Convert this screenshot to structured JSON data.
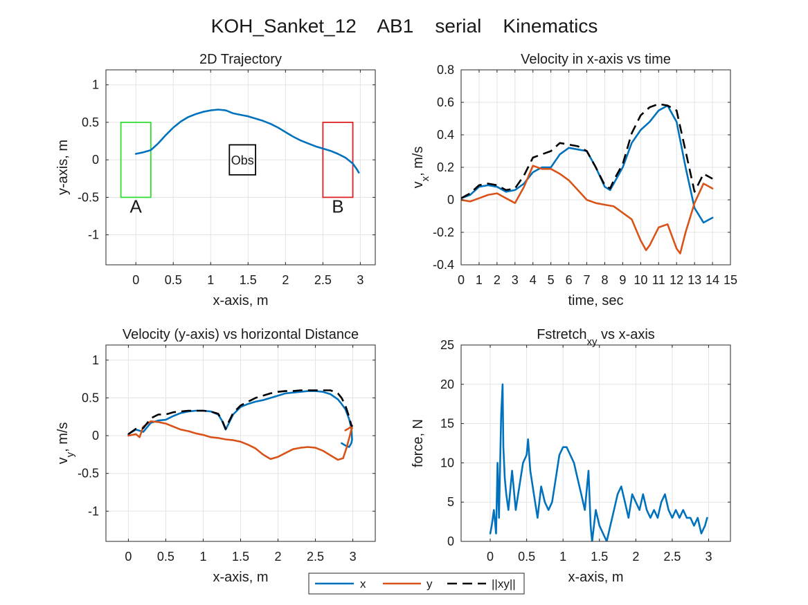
{
  "figure": {
    "title": "KOH_Sanket_12    AB1    serial    Kinematics"
  },
  "legend": {
    "placement": "bottom-center",
    "entries": [
      {
        "label": "x",
        "color": "#0072BD",
        "dash": "solid"
      },
      {
        "label": "y",
        "color": "#D95319",
        "dash": "solid"
      },
      {
        "label": "||xy||",
        "color": "#000000",
        "dash": "dashed"
      }
    ]
  },
  "colors": {
    "x": "#0072BD",
    "y": "#D95319",
    "mag": "#000000",
    "boxA": "#33dd33",
    "boxB": "#dd2222",
    "obs": "#000000"
  },
  "chart_data": [
    {
      "type": "line",
      "title": "2D Trajectory",
      "xlabel": "x-axis, m",
      "ylabel": "y-axis, m",
      "xlim": [
        -0.4,
        3.2
      ],
      "ylim": [
        -1.4,
        1.2
      ],
      "grid": true,
      "xticks": [
        0,
        0.5,
        1,
        1.5,
        2,
        2.5,
        3
      ],
      "yticks": [
        -1,
        -0.5,
        0,
        0.5,
        1
      ],
      "series": [
        {
          "key": "x",
          "x": [
            0,
            0.1,
            0.2,
            0.3,
            0.4,
            0.5,
            0.6,
            0.7,
            0.8,
            0.9,
            1.0,
            1.1,
            1.2,
            1.25,
            1.3,
            1.4,
            1.5,
            1.6,
            1.7,
            1.8,
            1.9,
            2.0,
            2.1,
            2.2,
            2.3,
            2.4,
            2.5,
            2.6,
            2.7,
            2.8,
            2.9,
            2.95,
            2.98
          ],
          "y": [
            0.08,
            0.1,
            0.13,
            0.22,
            0.33,
            0.43,
            0.51,
            0.57,
            0.61,
            0.64,
            0.66,
            0.67,
            0.66,
            0.64,
            0.62,
            0.6,
            0.58,
            0.55,
            0.52,
            0.48,
            0.43,
            0.37,
            0.31,
            0.26,
            0.22,
            0.18,
            0.15,
            0.12,
            0.08,
            0.03,
            -0.05,
            -0.12,
            -0.17
          ]
        }
      ],
      "boxes": [
        {
          "label": "A",
          "x0": -0.2,
          "x1": 0.2,
          "y0": -0.5,
          "y1": 0.5,
          "color": "#33dd33"
        },
        {
          "label": "B",
          "x0": 2.5,
          "x1": 2.9,
          "y0": -0.5,
          "y1": 0.5,
          "color": "#dd2222"
        },
        {
          "label": "Obs",
          "x0": 1.25,
          "x1": 1.6,
          "y0": -0.2,
          "y1": 0.2,
          "color": "#000000"
        }
      ]
    },
    {
      "type": "line",
      "title": "Velocity in x-axis vs time",
      "xlabel": "time, sec",
      "ylabel": "v_x, m/s",
      "xlim": [
        0,
        15
      ],
      "ylim": [
        -0.4,
        0.8
      ],
      "grid": true,
      "xticks": [
        0,
        1,
        2,
        3,
        4,
        5,
        6,
        7,
        8,
        9,
        10,
        11,
        12,
        13,
        14,
        15
      ],
      "yticks": [
        -0.4,
        -0.2,
        0,
        0.2,
        0.4,
        0.6,
        0.8
      ],
      "series": [
        {
          "key": "x",
          "x": [
            0,
            0.5,
            1,
            1.5,
            2,
            2.5,
            3,
            3.5,
            4,
            4.5,
            5,
            5.5,
            6,
            6.5,
            7,
            7.5,
            8,
            8.3,
            8.5,
            9,
            9.5,
            10,
            10.5,
            11,
            11.5,
            12,
            12.5,
            13,
            13.5,
            14
          ],
          "y": [
            0.01,
            0.03,
            0.08,
            0.09,
            0.08,
            0.05,
            0.06,
            0.1,
            0.17,
            0.2,
            0.2,
            0.28,
            0.32,
            0.31,
            0.3,
            0.2,
            0.08,
            0.06,
            0.1,
            0.2,
            0.35,
            0.43,
            0.48,
            0.55,
            0.58,
            0.48,
            0.2,
            -0.05,
            -0.14,
            -0.11
          ]
        },
        {
          "key": "y",
          "x": [
            0,
            0.5,
            1,
            1.5,
            2,
            2.5,
            3,
            3.5,
            4,
            4.5,
            5,
            5.5,
            6,
            6.5,
            7,
            7.5,
            8,
            8.5,
            9,
            9.5,
            10,
            10.3,
            10.5,
            11,
            11.5,
            12,
            12.2,
            12.5,
            13,
            13.5,
            14
          ],
          "y": [
            0,
            -0.01,
            0.01,
            0.03,
            0.04,
            0.01,
            -0.02,
            0.08,
            0.21,
            0.19,
            0.19,
            0.16,
            0.12,
            0.06,
            0.0,
            -0.02,
            -0.03,
            -0.04,
            -0.08,
            -0.12,
            -0.25,
            -0.31,
            -0.28,
            -0.17,
            -0.15,
            -0.3,
            -0.33,
            -0.2,
            -0.02,
            0.1,
            0.07
          ]
        },
        {
          "key": "mag",
          "x": [
            0,
            0.5,
            1,
            1.5,
            2,
            2.5,
            3,
            3.5,
            4,
            4.5,
            5,
            5.5,
            6,
            6.5,
            7,
            7.5,
            8,
            8.3,
            8.5,
            9,
            9.5,
            10,
            10.5,
            11,
            11.5,
            12,
            12.5,
            13,
            13.5,
            14
          ],
          "y": [
            0.01,
            0.04,
            0.09,
            0.1,
            0.09,
            0.06,
            0.07,
            0.15,
            0.26,
            0.28,
            0.3,
            0.35,
            0.34,
            0.33,
            0.3,
            0.2,
            0.09,
            0.07,
            0.12,
            0.22,
            0.41,
            0.52,
            0.57,
            0.59,
            0.58,
            0.55,
            0.3,
            0.05,
            0.16,
            0.13
          ]
        }
      ]
    },
    {
      "type": "line",
      "title": "Velocity (y-axis) vs horizontal Distance",
      "xlabel": "x-axis, m",
      "ylabel": "v_y, m/s",
      "xlim": [
        -0.3,
        3.3
      ],
      "ylim": [
        -1.4,
        1.2
      ],
      "grid": true,
      "xticks": [
        0,
        0.5,
        1,
        1.5,
        2,
        2.5,
        3
      ],
      "yticks": [
        -1,
        -0.5,
        0,
        0.5,
        1
      ],
      "series": [
        {
          "key": "x",
          "x": [
            0,
            0.1,
            0.2,
            0.3,
            0.4,
            0.5,
            0.6,
            0.7,
            0.8,
            0.9,
            1.0,
            1.1,
            1.2,
            1.25,
            1.3,
            1.35,
            1.4,
            1.5,
            1.6,
            1.7,
            1.8,
            1.9,
            2.0,
            2.1,
            2.2,
            2.3,
            2.4,
            2.5,
            2.6,
            2.7,
            2.8,
            2.85,
            2.9,
            2.95,
            2.98,
            2.99,
            2.98,
            2.95,
            2.9,
            2.85
          ],
          "y": [
            0.02,
            0.08,
            0.05,
            0.17,
            0.2,
            0.21,
            0.26,
            0.3,
            0.32,
            0.33,
            0.33,
            0.32,
            0.28,
            0.2,
            0.08,
            0.18,
            0.28,
            0.38,
            0.42,
            0.45,
            0.47,
            0.5,
            0.53,
            0.56,
            0.57,
            0.58,
            0.59,
            0.59,
            0.58,
            0.55,
            0.48,
            0.42,
            0.35,
            0.22,
            0.1,
            -0.05,
            -0.1,
            -0.15,
            -0.13,
            -0.1
          ]
        },
        {
          "key": "y",
          "x": [
            0,
            0.1,
            0.15,
            0.2,
            0.3,
            0.4,
            0.5,
            0.6,
            0.7,
            0.8,
            0.9,
            1.0,
            1.1,
            1.2,
            1.3,
            1.4,
            1.5,
            1.6,
            1.7,
            1.8,
            1.9,
            2.0,
            2.1,
            2.2,
            2.3,
            2.4,
            2.5,
            2.6,
            2.7,
            2.8,
            2.87,
            2.92,
            2.96,
            2.98,
            2.99,
            2.98,
            2.95,
            2.9
          ],
          "y": [
            0.0,
            0.02,
            -0.02,
            0.12,
            0.19,
            0.18,
            0.16,
            0.12,
            0.08,
            0.06,
            0.03,
            0.01,
            -0.02,
            -0.03,
            -0.05,
            -0.06,
            -0.08,
            -0.12,
            -0.17,
            -0.25,
            -0.31,
            -0.28,
            -0.23,
            -0.18,
            -0.16,
            -0.15,
            -0.16,
            -0.2,
            -0.26,
            -0.32,
            -0.3,
            -0.15,
            0.0,
            0.08,
            0.1,
            0.12,
            0.1,
            0.07
          ]
        },
        {
          "key": "mag",
          "x": [
            0,
            0.1,
            0.2,
            0.3,
            0.4,
            0.5,
            0.6,
            0.7,
            0.8,
            0.9,
            1.0,
            1.1,
            1.2,
            1.25,
            1.3,
            1.35,
            1.4,
            1.5,
            1.6,
            1.7,
            1.8,
            1.9,
            2.0,
            2.1,
            2.2,
            2.3,
            2.4,
            2.5,
            2.6,
            2.7,
            2.8,
            2.85,
            2.9,
            2.95,
            2.98,
            2.99,
            2.98
          ],
          "y": [
            0.02,
            0.09,
            0.1,
            0.23,
            0.28,
            0.28,
            0.31,
            0.32,
            0.33,
            0.33,
            0.33,
            0.32,
            0.29,
            0.21,
            0.09,
            0.2,
            0.3,
            0.4,
            0.45,
            0.5,
            0.53,
            0.56,
            0.58,
            0.59,
            0.59,
            0.6,
            0.6,
            0.6,
            0.6,
            0.6,
            0.56,
            0.5,
            0.4,
            0.25,
            0.14,
            0.13,
            0.12
          ]
        }
      ]
    },
    {
      "type": "line",
      "title": "Fstretch_xy vs x-axis",
      "xlabel": "x-axis, m",
      "ylabel": "force, N",
      "xlim": [
        -0.4,
        3.3
      ],
      "ylim": [
        0,
        25
      ],
      "grid": true,
      "xticks": [
        0,
        0.5,
        1,
        1.5,
        2,
        2.5,
        3
      ],
      "yticks": [
        0,
        5,
        10,
        15,
        20,
        25
      ],
      "series": [
        {
          "key": "x",
          "x": [
            0,
            0.02,
            0.05,
            0.08,
            0.1,
            0.12,
            0.15,
            0.17,
            0.18,
            0.2,
            0.22,
            0.25,
            0.3,
            0.35,
            0.4,
            0.45,
            0.5,
            0.52,
            0.55,
            0.6,
            0.65,
            0.7,
            0.75,
            0.8,
            0.85,
            0.9,
            0.95,
            1.0,
            1.05,
            1.1,
            1.15,
            1.2,
            1.25,
            1.3,
            1.35,
            1.38,
            1.4,
            1.45,
            1.5,
            1.55,
            1.6,
            1.65,
            1.7,
            1.75,
            1.8,
            1.85,
            1.9,
            1.95,
            2.0,
            2.05,
            2.1,
            2.15,
            2.2,
            2.25,
            2.3,
            2.35,
            2.4,
            2.45,
            2.5,
            2.55,
            2.6,
            2.65,
            2.7,
            2.75,
            2.8,
            2.85,
            2.9,
            2.95,
            2.98
          ],
          "y": [
            1,
            2,
            4,
            1,
            10,
            3,
            16,
            20,
            12,
            8,
            6,
            4,
            9,
            4,
            7,
            10,
            11,
            13,
            9,
            6,
            3,
            7,
            5,
            4,
            5,
            8,
            11,
            12,
            12,
            11,
            10,
            8,
            6,
            4,
            9,
            2,
            0,
            4,
            2,
            1,
            0,
            2,
            4,
            6,
            7,
            5,
            3,
            6,
            5,
            4,
            6,
            4,
            3,
            4,
            3,
            5,
            6,
            4,
            3,
            4,
            3,
            4,
            3,
            3,
            2,
            3,
            1,
            2,
            3
          ]
        }
      ]
    }
  ]
}
